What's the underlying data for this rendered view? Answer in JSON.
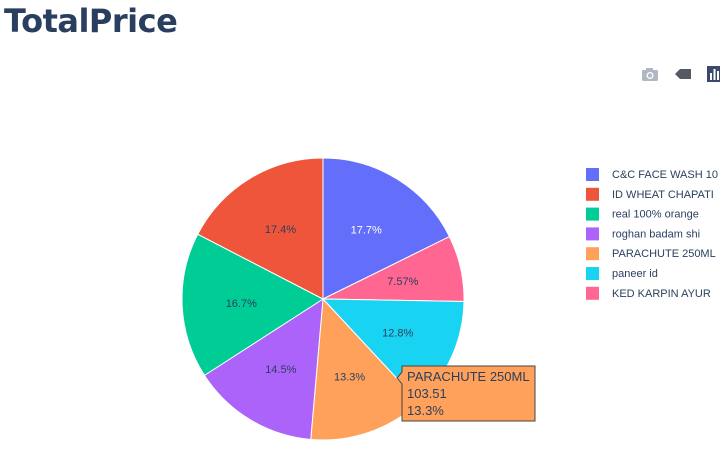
{
  "title": "TotalPrice",
  "modebar": {
    "icons": [
      "camera-icon",
      "tag-icon",
      "bar-chart-icon"
    ]
  },
  "chart_data": {
    "type": "pie",
    "title": "",
    "legend_position": "right",
    "slices": [
      {
        "label": "C&C FACE WASH 10",
        "percent": 17.7,
        "percent_text": "17.7%",
        "color": "#636efa"
      },
      {
        "label": "KED KARPIN AYUR",
        "percent": 7.57,
        "percent_text": "7.57%",
        "color": "#ff6692"
      },
      {
        "label": "paneer id",
        "percent": 12.8,
        "percent_text": "12.8%",
        "color": "#19d3f3"
      },
      {
        "label": "PARACHUTE 250ML",
        "percent": 13.3,
        "percent_text": "13.3%",
        "color": "#ffa15a",
        "value": 103.51
      },
      {
        "label": "roghan badam shi",
        "percent": 14.5,
        "percent_text": "14.5%",
        "color": "#ab63fa"
      },
      {
        "label": "real 100% orange",
        "percent": 16.7,
        "percent_text": "16.7%",
        "color": "#00cc96"
      },
      {
        "label": "ID WHEAT CHAPATI",
        "percent": 17.4,
        "percent_text": "17.4%",
        "color": "#ef553b"
      }
    ],
    "legend_order": [
      "C&C FACE WASH 10",
      "ID WHEAT CHAPATI",
      "real 100% orange",
      "roghan badam shi",
      "PARACHUTE 250ML",
      "paneer id",
      "KED KARPIN AYUR"
    ],
    "hover": {
      "label": "PARACHUTE 250ML",
      "value": "103.51",
      "percent": "13.3%"
    }
  }
}
